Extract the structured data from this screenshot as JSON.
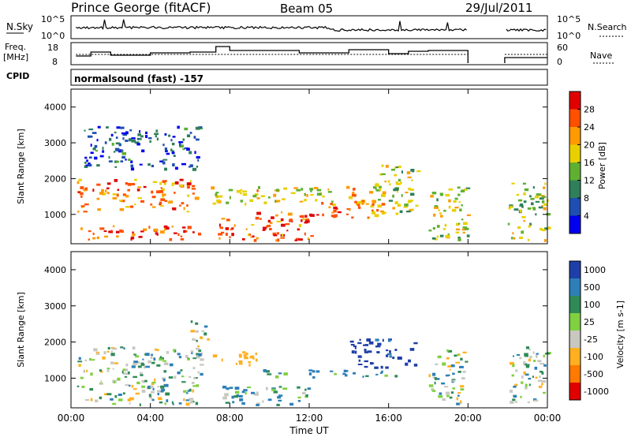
{
  "header": {
    "station": "Prince George (fitACF)",
    "beam": "Beam 05",
    "date": "29/Jul/2011"
  },
  "noise_panel": {
    "left_label": "N.Sky",
    "right_label": "N.Search",
    "left_ticks": [
      "10^5",
      "10^0"
    ],
    "right_ticks": [
      "10^5",
      "10^0"
    ]
  },
  "freq_panel": {
    "left_label_1": "Freq.",
    "left_label_2": "[MHz]",
    "right_label": "Nave",
    "left_ticks": [
      "18",
      "8"
    ],
    "right_ticks": [
      "60",
      "0"
    ]
  },
  "cpid": {
    "label": "CPID",
    "mode": "normalsound (fast) -157"
  },
  "x_axis": {
    "label": "Time UT",
    "ticks": [
      "00:00",
      "04:00",
      "08:00",
      "12:00",
      "16:00",
      "20:00",
      "00:00"
    ]
  },
  "colors": {
    "power_scale": [
      "#0000ee",
      "#1e4fb0",
      "#2f7f5a",
      "#5fb030",
      "#e8d000",
      "#ff9a00",
      "#ff5000",
      "#e00000"
    ],
    "velocity_scale": [
      "#1f3fa8",
      "#2d7fb8",
      "#2f8a57",
      "#80d040",
      "#c8c8c0",
      "#ffb020",
      "#ff7a00",
      "#e00000"
    ]
  },
  "chart_data": [
    {
      "type": "heatmap",
      "title": "",
      "xlabel": "Time UT",
      "ylabel": "Slant Range [km]",
      "xlim": [
        "00:00",
        "24:00"
      ],
      "ylim": [
        180,
        4500
      ],
      "yticks": [
        "1000",
        "2000",
        "3000",
        "4000"
      ],
      "colorbar": {
        "label": "Power [dB]",
        "ticks": [
          "4",
          "8",
          "12",
          "16",
          "20",
          "24",
          "28"
        ],
        "range": [
          0,
          30
        ]
      },
      "data_gap_utc": [
        "20:00",
        "21:50"
      ],
      "echo_regions": [
        {
          "t_start": 0.3,
          "t_end": 6.3,
          "range_min": 1100,
          "range_max": 2000,
          "power_db": 22
        },
        {
          "t_start": 0.3,
          "t_end": 6.5,
          "range_min": 300,
          "range_max": 700,
          "power_db": 26
        },
        {
          "t_start": 7.3,
          "t_end": 12.2,
          "range_min": 300,
          "range_max": 1100,
          "power_db": 24
        },
        {
          "t_start": 7.0,
          "t_end": 15.5,
          "range_min": 1300,
          "range_max": 1800,
          "power_db": 18
        },
        {
          "t_start": 12.0,
          "t_end": 15.8,
          "range_min": 900,
          "range_max": 1400,
          "power_db": 22
        },
        {
          "t_start": 15.3,
          "t_end": 17.5,
          "range_min": 1000,
          "range_max": 2400,
          "power_db": 14
        },
        {
          "t_start": 18.0,
          "t_end": 20.0,
          "range_min": 300,
          "range_max": 1800,
          "power_db": 16
        },
        {
          "t_start": 22.0,
          "t_end": 24.0,
          "range_min": 300,
          "range_max": 1900,
          "power_db": 14
        },
        {
          "t_start": 0.5,
          "t_end": 6.6,
          "range_min": 2300,
          "range_max": 3500,
          "power_db": 6
        }
      ]
    },
    {
      "type": "heatmap",
      "title": "",
      "xlabel": "Time UT",
      "ylabel": "Slant Range [km]",
      "xlim": [
        "00:00",
        "24:00"
      ],
      "ylim": [
        180,
        4500
      ],
      "yticks": [
        "1000",
        "2000",
        "3000",
        "4000"
      ],
      "colorbar": {
        "label": "Velocity [m s-1]",
        "ticks": [
          "1000",
          "500",
          "100",
          "25",
          "-25",
          "-100",
          "-500",
          "-1000"
        ]
      },
      "data_gap_utc": [
        "20:00",
        "21:50"
      ],
      "echo_regions": [
        {
          "t_start": 0.3,
          "t_end": 6.5,
          "range_min": 300,
          "range_max": 1900,
          "velocity": 0
        },
        {
          "t_start": 6.0,
          "t_end": 7.0,
          "range_min": 1600,
          "range_max": 2600,
          "velocity": 0
        },
        {
          "t_start": 7.0,
          "t_end": 9.5,
          "range_min": 1400,
          "range_max": 1800,
          "velocity": -300
        },
        {
          "t_start": 9.5,
          "t_end": 16.5,
          "range_min": 1050,
          "range_max": 1250,
          "velocity": 120
        },
        {
          "t_start": 14.0,
          "t_end": 17.3,
          "range_min": 1300,
          "range_max": 2100,
          "velocity": 600
        },
        {
          "t_start": 18.0,
          "t_end": 20.0,
          "range_min": 300,
          "range_max": 1800,
          "velocity": 0
        },
        {
          "t_start": 22.0,
          "t_end": 24.0,
          "range_min": 300,
          "range_max": 1900,
          "velocity": 0
        },
        {
          "t_start": 7.5,
          "t_end": 12.0,
          "range_min": 250,
          "range_max": 800,
          "velocity": 60
        }
      ]
    }
  ]
}
